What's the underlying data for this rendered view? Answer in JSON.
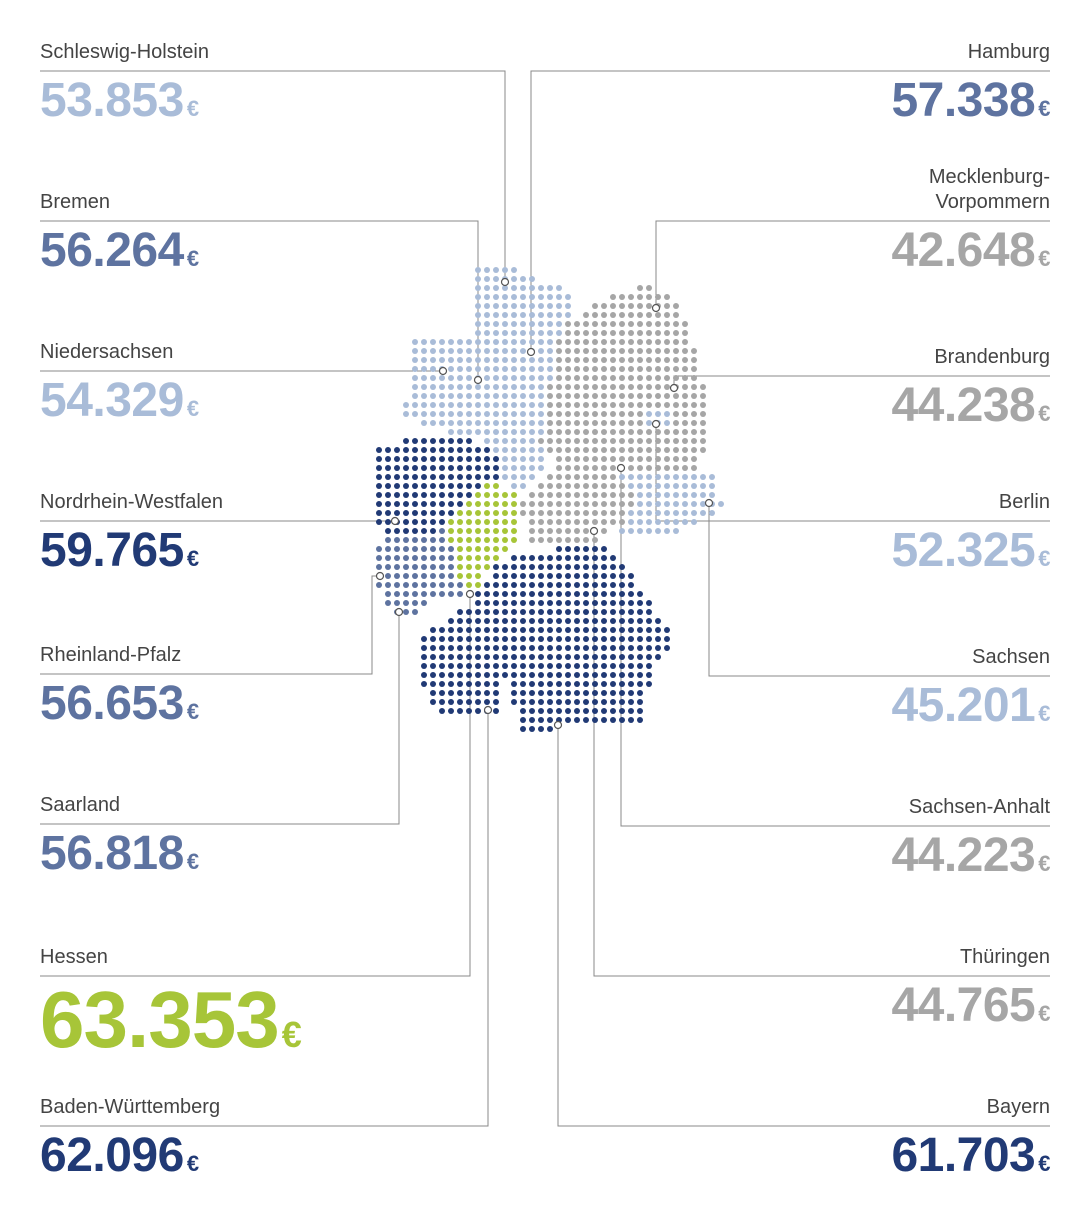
{
  "colors": {
    "light_blue": "#a9bcd8",
    "mid_blue": "#5e73a0",
    "dark_blue": "#213a75",
    "grey": "#a6a6a6",
    "green": "#a7c538",
    "leader_line": "#888888"
  },
  "currency_symbol": "€",
  "states": [
    {
      "name": "Schleswig-Holstein",
      "value": "53.853",
      "color_class": "light"
    },
    {
      "name": "Bremen",
      "value": "56.264",
      "color_class": "mid"
    },
    {
      "name": "Niedersachsen",
      "value": "54.329",
      "color_class": "light"
    },
    {
      "name": "Nordrhein-Westfalen",
      "value": "59.765",
      "color_class": "dark"
    },
    {
      "name": "Rheinland-Pfalz",
      "value": "56.653",
      "color_class": "mid"
    },
    {
      "name": "Saarland",
      "value": "56.818",
      "color_class": "mid"
    },
    {
      "name": "Hessen",
      "value": "63.353",
      "color_class": "green"
    },
    {
      "name": "Baden-Württemberg",
      "value": "62.096",
      "color_class": "dark"
    },
    {
      "name": "Hamburg",
      "value": "57.338",
      "color_class": "mid"
    },
    {
      "name": "Mecklenburg-Vorpommern",
      "name_lines": [
        "Mecklenburg-",
        "Vorpommern"
      ],
      "value": "42.648",
      "color_class": "grey"
    },
    {
      "name": "Brandenburg",
      "value": "44.238",
      "color_class": "grey"
    },
    {
      "name": "Berlin",
      "value": "52.325",
      "color_class": "light"
    },
    {
      "name": "Sachsen",
      "value": "45.201",
      "color_class": "light"
    },
    {
      "name": "Sachsen-Anhalt",
      "value": "44.223",
      "color_class": "grey"
    },
    {
      "name": "Thüringen",
      "value": "44.765",
      "color_class": "grey"
    },
    {
      "name": "Bayern",
      "value": "61.703",
      "color_class": "dark"
    }
  ]
}
